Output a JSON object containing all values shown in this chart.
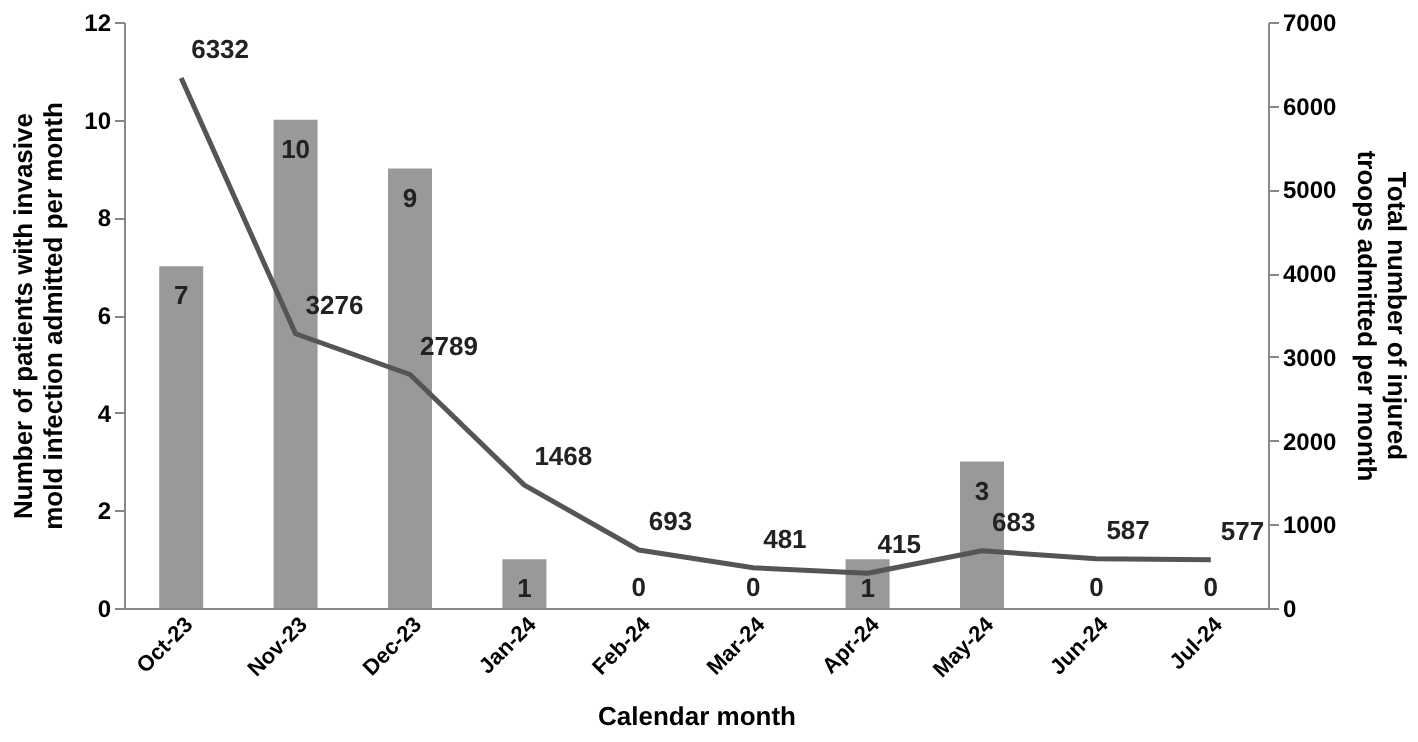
{
  "chart_data": {
    "type": "bar",
    "categories": [
      "Oct-23",
      "Nov-23",
      "Dec-23",
      "Jan-24",
      "Feb-24",
      "Mar-24",
      "Apr-24",
      "May-24",
      "Jun-24",
      "Jul-24"
    ],
    "xlabel": "Calendar month",
    "ylabel": "Number of patients with invasive mold infection admitted per month",
    "y2label": "Total number of injured troops admitted per month",
    "series": [
      {
        "color": "#999999",
        "values": [
          7,
          10,
          9,
          1,
          0,
          0,
          1,
          3,
          0,
          0
        ]
      },
      {
        "type": "line",
        "axis": "y2",
        "color": "#555555",
        "values": [
          6332,
          3276,
          2789,
          1468,
          693,
          481,
          415,
          683,
          587,
          577
        ]
      }
    ],
    "ylim": [
      0,
      12
    ],
    "yticks": [
      0,
      2,
      4,
      6,
      8,
      10,
      12
    ],
    "y2lim": [
      0,
      7000
    ],
    "y2ticks": [
      0,
      1000,
      2000,
      3000,
      4000,
      5000,
      6000,
      7000
    ],
    "data_labels": true,
    "grid": false,
    "marker": "none",
    "line_style": "solid"
  }
}
